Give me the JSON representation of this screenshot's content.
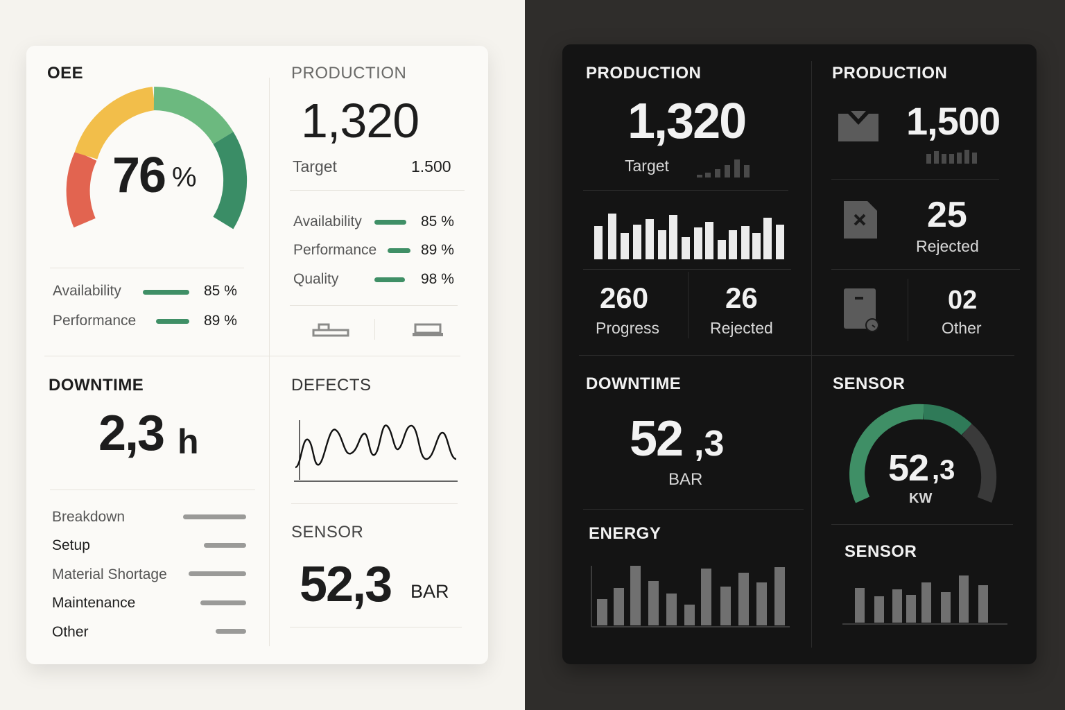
{
  "light": {
    "oee": {
      "title": "OEE",
      "value": "76",
      "unit": "%",
      "gauge_colors": [
        "#e26450",
        "#f2be4a",
        "#6cb97f",
        "#3a8d66"
      ],
      "metrics": [
        {
          "label": "Availability",
          "value": "85 %"
        },
        {
          "label": "Performance",
          "value": "89 %"
        }
      ]
    },
    "production": {
      "title": "PRODUCTION",
      "value": "1,320",
      "target_label": "Target",
      "target_value": "1.500",
      "metrics": [
        {
          "label": "Availability",
          "value": "85 %"
        },
        {
          "label": "Performance",
          "value": "89 %"
        },
        {
          "label": "Quality",
          "value": "98 %"
        }
      ],
      "icons": [
        "conveyor-icon",
        "machine-icon"
      ]
    },
    "downtime": {
      "title": "DOWNTIME",
      "value": "2,3",
      "unit": "h",
      "reasons": [
        {
          "label": "Breakdown"
        },
        {
          "label": "Setup"
        },
        {
          "label": "Material Shortage"
        },
        {
          "label": "Maintenance"
        },
        {
          "label": "Other"
        }
      ]
    },
    "defects": {
      "title": "DEFECTS"
    },
    "sensor": {
      "title": "SENSOR",
      "value": "52,3",
      "unit": "BAR"
    }
  },
  "dark": {
    "production": {
      "title": "PRODUCTION",
      "value": "1,320",
      "target_label": "Target",
      "progress_value": "260",
      "progress_label": "Progress",
      "rejected_value": "26",
      "rejected_label": "Rejected"
    },
    "production2": {
      "title": "PRODUCTION",
      "value": "1,500",
      "rejected_value": "25",
      "rejected_label": "Rejected",
      "other_value": "02",
      "other_label": "Other",
      "icons": [
        "inbox-icon",
        "reject-file-icon",
        "bin-icon"
      ]
    },
    "downtime": {
      "title": "DOWNTIME",
      "value_main": "52",
      "value_decimal": ",3",
      "unit": "BAR"
    },
    "energy": {
      "title": "ENERGY"
    },
    "sensor_gauge": {
      "title": "SENSOR",
      "value_main": "52",
      "value_decimal": ",3",
      "unit": "KW",
      "gauge_colors": [
        "#3f8f66",
        "#2f7a58",
        "#3a3a3a"
      ]
    },
    "sensor_bars": {
      "title": "SENSOR"
    }
  }
}
